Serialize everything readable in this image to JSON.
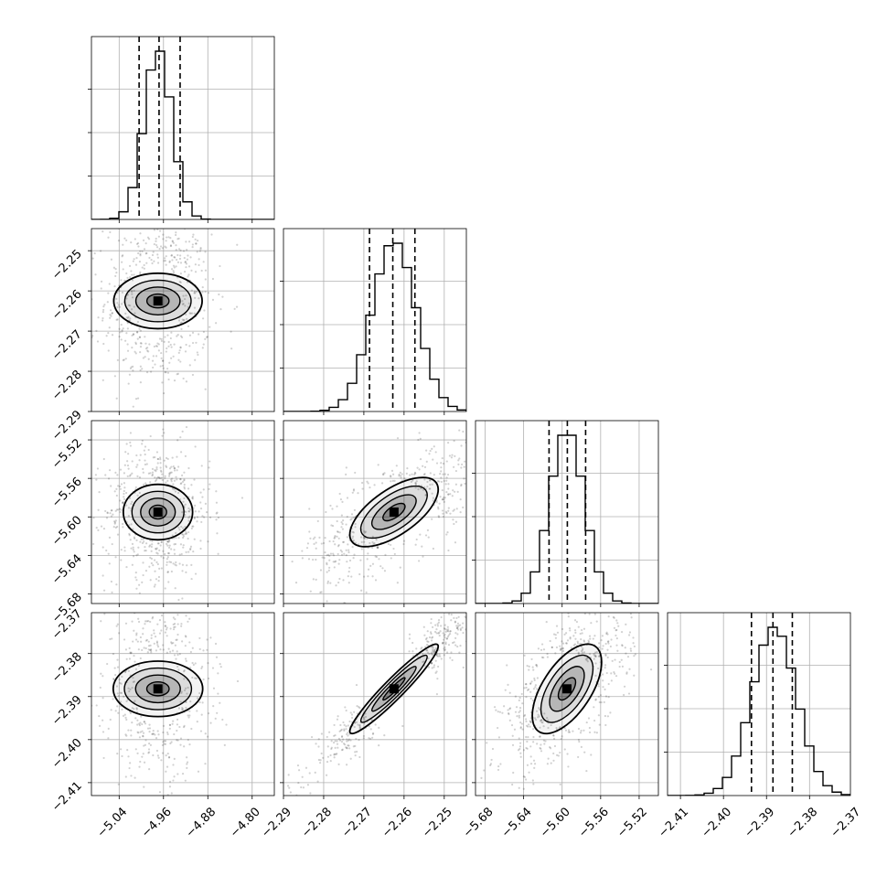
{
  "chart_data": {
    "type": "corner",
    "grid": true,
    "colors": {
      "line": "#000000",
      "grid": "#b0b0b0",
      "scatter": "#000000"
    },
    "parameters": [
      {
        "range": [
          -5.09,
          -4.76
        ],
        "mean": -4.97,
        "sigma": 0.025,
        "quantiles": [
          -5.004,
          -4.968,
          -4.93
        ],
        "ticks": [
          -5.04,
          -4.96,
          -4.88,
          -4.8
        ],
        "tick_labels": [
          "−5.04",
          "−4.96",
          "−4.88",
          "−4.80"
        ]
      },
      {
        "range": [
          -2.29,
          -2.2445
        ],
        "mean": -2.2625,
        "sigma": 0.0055,
        "quantiles": [
          -2.2686,
          -2.2628,
          -2.2573
        ],
        "ticks": [
          -2.29,
          -2.28,
          -2.27,
          -2.26,
          -2.25
        ],
        "tick_labels": [
          "−2.29",
          "−2.28",
          "−2.27",
          "−2.26",
          "−2.25"
        ]
      },
      {
        "range": [
          -5.69,
          -5.5
        ],
        "mean": -5.595,
        "sigma": 0.018,
        "quantiles": [
          -5.6136,
          -5.5946,
          -5.5756
        ],
        "ticks": [
          -5.68,
          -5.64,
          -5.6,
          -5.56,
          -5.52
        ],
        "tick_labels": [
          "−5.68",
          "−5.64",
          "−5.60",
          "−5.56",
          "−5.52"
        ]
      },
      {
        "range": [
          -2.413,
          -2.3705
        ],
        "mean": -2.3882,
        "sigma": 0.0052,
        "quantiles": [
          -2.3935,
          -2.3885,
          -2.384
        ],
        "ticks": [
          -2.41,
          -2.4,
          -2.39,
          -2.38,
          -2.37
        ],
        "tick_labels": [
          "−2.41",
          "−2.40",
          "−2.39",
          "−2.38",
          "−2.37"
        ]
      }
    ],
    "correlations": [
      {
        "pair": [
          1,
          0
        ],
        "rho": 0.0
      },
      {
        "pair": [
          2,
          0
        ],
        "rho": 0.0
      },
      {
        "pair": [
          2,
          1
        ],
        "rho": 0.65
      },
      {
        "pair": [
          3,
          0
        ],
        "rho": 0.0
      },
      {
        "pair": [
          3,
          1
        ],
        "rho": 0.95
      },
      {
        "pair": [
          3,
          2
        ],
        "rho": 0.6
      }
    ],
    "contour_levels_sigma": [
      0.5,
      1.0,
      1.5,
      2.0
    ]
  }
}
